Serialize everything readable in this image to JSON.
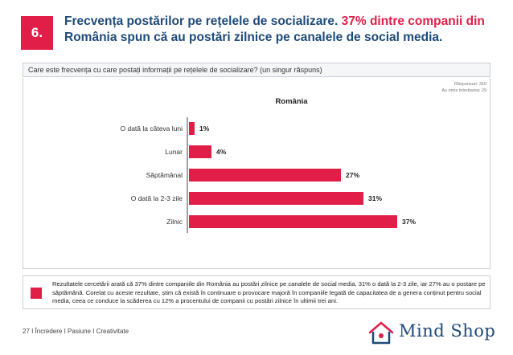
{
  "slide": {
    "number": "6.",
    "title_main": "Frecvența postărilor pe rețelele de socializare. ",
    "title_highlight": "37% dintre companii din",
    "title_line2": "România spun că au postări zilnice pe canalele de social media."
  },
  "question": "Care este frecvența cu care postați informații pe rețelele de socializare? (un singur răspuns)",
  "meta": {
    "responses": "Răspunsuri: 310",
    "skipped": "Au omis întrebarea: 29"
  },
  "chart_data": {
    "type": "bar",
    "orientation": "horizontal",
    "title": "România",
    "categories": [
      "O dată la câteva luni",
      "Lunar",
      "Săptămânal",
      "O dată la 2-3 zile",
      "Zilnic"
    ],
    "values": [
      1,
      4,
      27,
      31,
      37
    ],
    "value_labels": [
      "1%",
      "4%",
      "27%",
      "31%",
      "37%"
    ],
    "unit": "%",
    "xlim": [
      0,
      37
    ],
    "color": "#e01e48"
  },
  "finding": "Rezultatele cercetării arată că 37% dintre companiile din România au postări zilnice pe canalele de social media, 31% o dată la 2-3 zile, iar 27% au o postare pe săptămână. Corelat cu aceste rezultate, știm că există în continuare o provocare majoră în companiile legată de capacitatea de a genera conținut pentru social media, ceea ce conduce la scăderea cu 12% a procentului de companii cu postări zilnice în ultimii trei ani.",
  "footer": "27 I Încredere I Pasiune I Creativitate",
  "brand": {
    "name": "Mind Shop",
    "primary": "#1e4a7a",
    "accent": "#e01e48"
  }
}
